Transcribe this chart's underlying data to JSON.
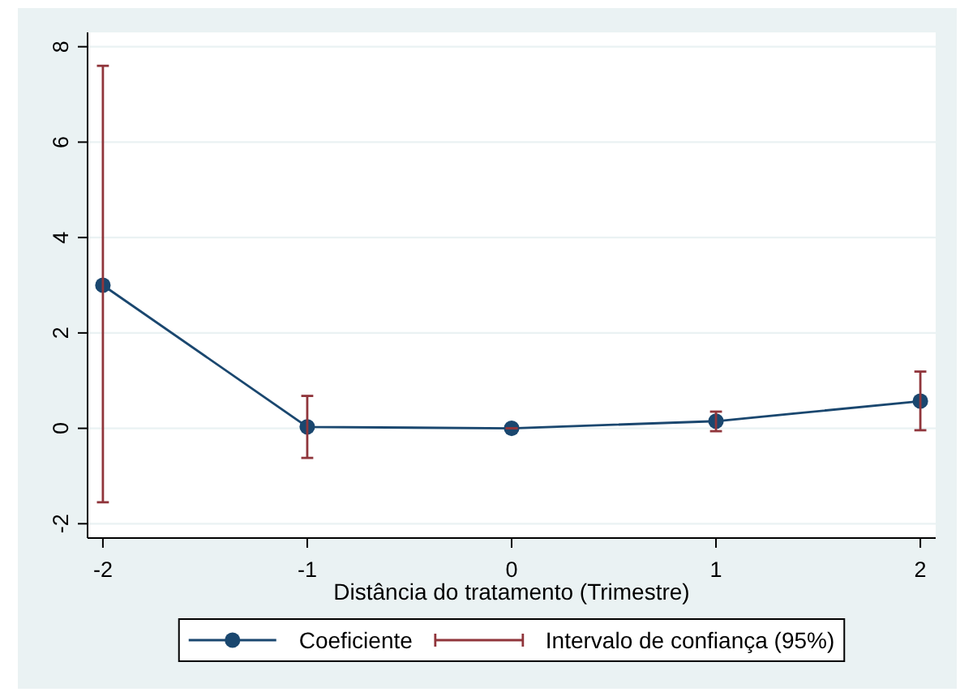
{
  "chart_data": {
    "type": "line",
    "xlabel": "Distância do tratamento (Trimestre)",
    "x": [
      -2,
      -1,
      0,
      1,
      2
    ],
    "xlim": [
      -2.075,
      2.075
    ],
    "xticks": [
      -2,
      -1,
      0,
      1,
      2
    ],
    "ylim": [
      -2.3,
      8.3
    ],
    "yticks": [
      -2,
      0,
      2,
      4,
      6,
      8
    ],
    "grid": "y",
    "legend": "bottom",
    "series": [
      {
        "name": "Coeficiente",
        "marker": "circle",
        "color": "#1a476f",
        "values": [
          3.0,
          0.03,
          0.0,
          0.15,
          0.57
        ],
        "errors": [
          [
            -1.55,
            7.6
          ],
          [
            -0.62,
            0.68
          ],
          [
            0,
            0
          ],
          [
            -0.06,
            0.35
          ],
          [
            -0.04,
            1.19
          ]
        ]
      }
    ],
    "annotations": [
      "Intervalo de confiança (95%)"
    ]
  }
}
